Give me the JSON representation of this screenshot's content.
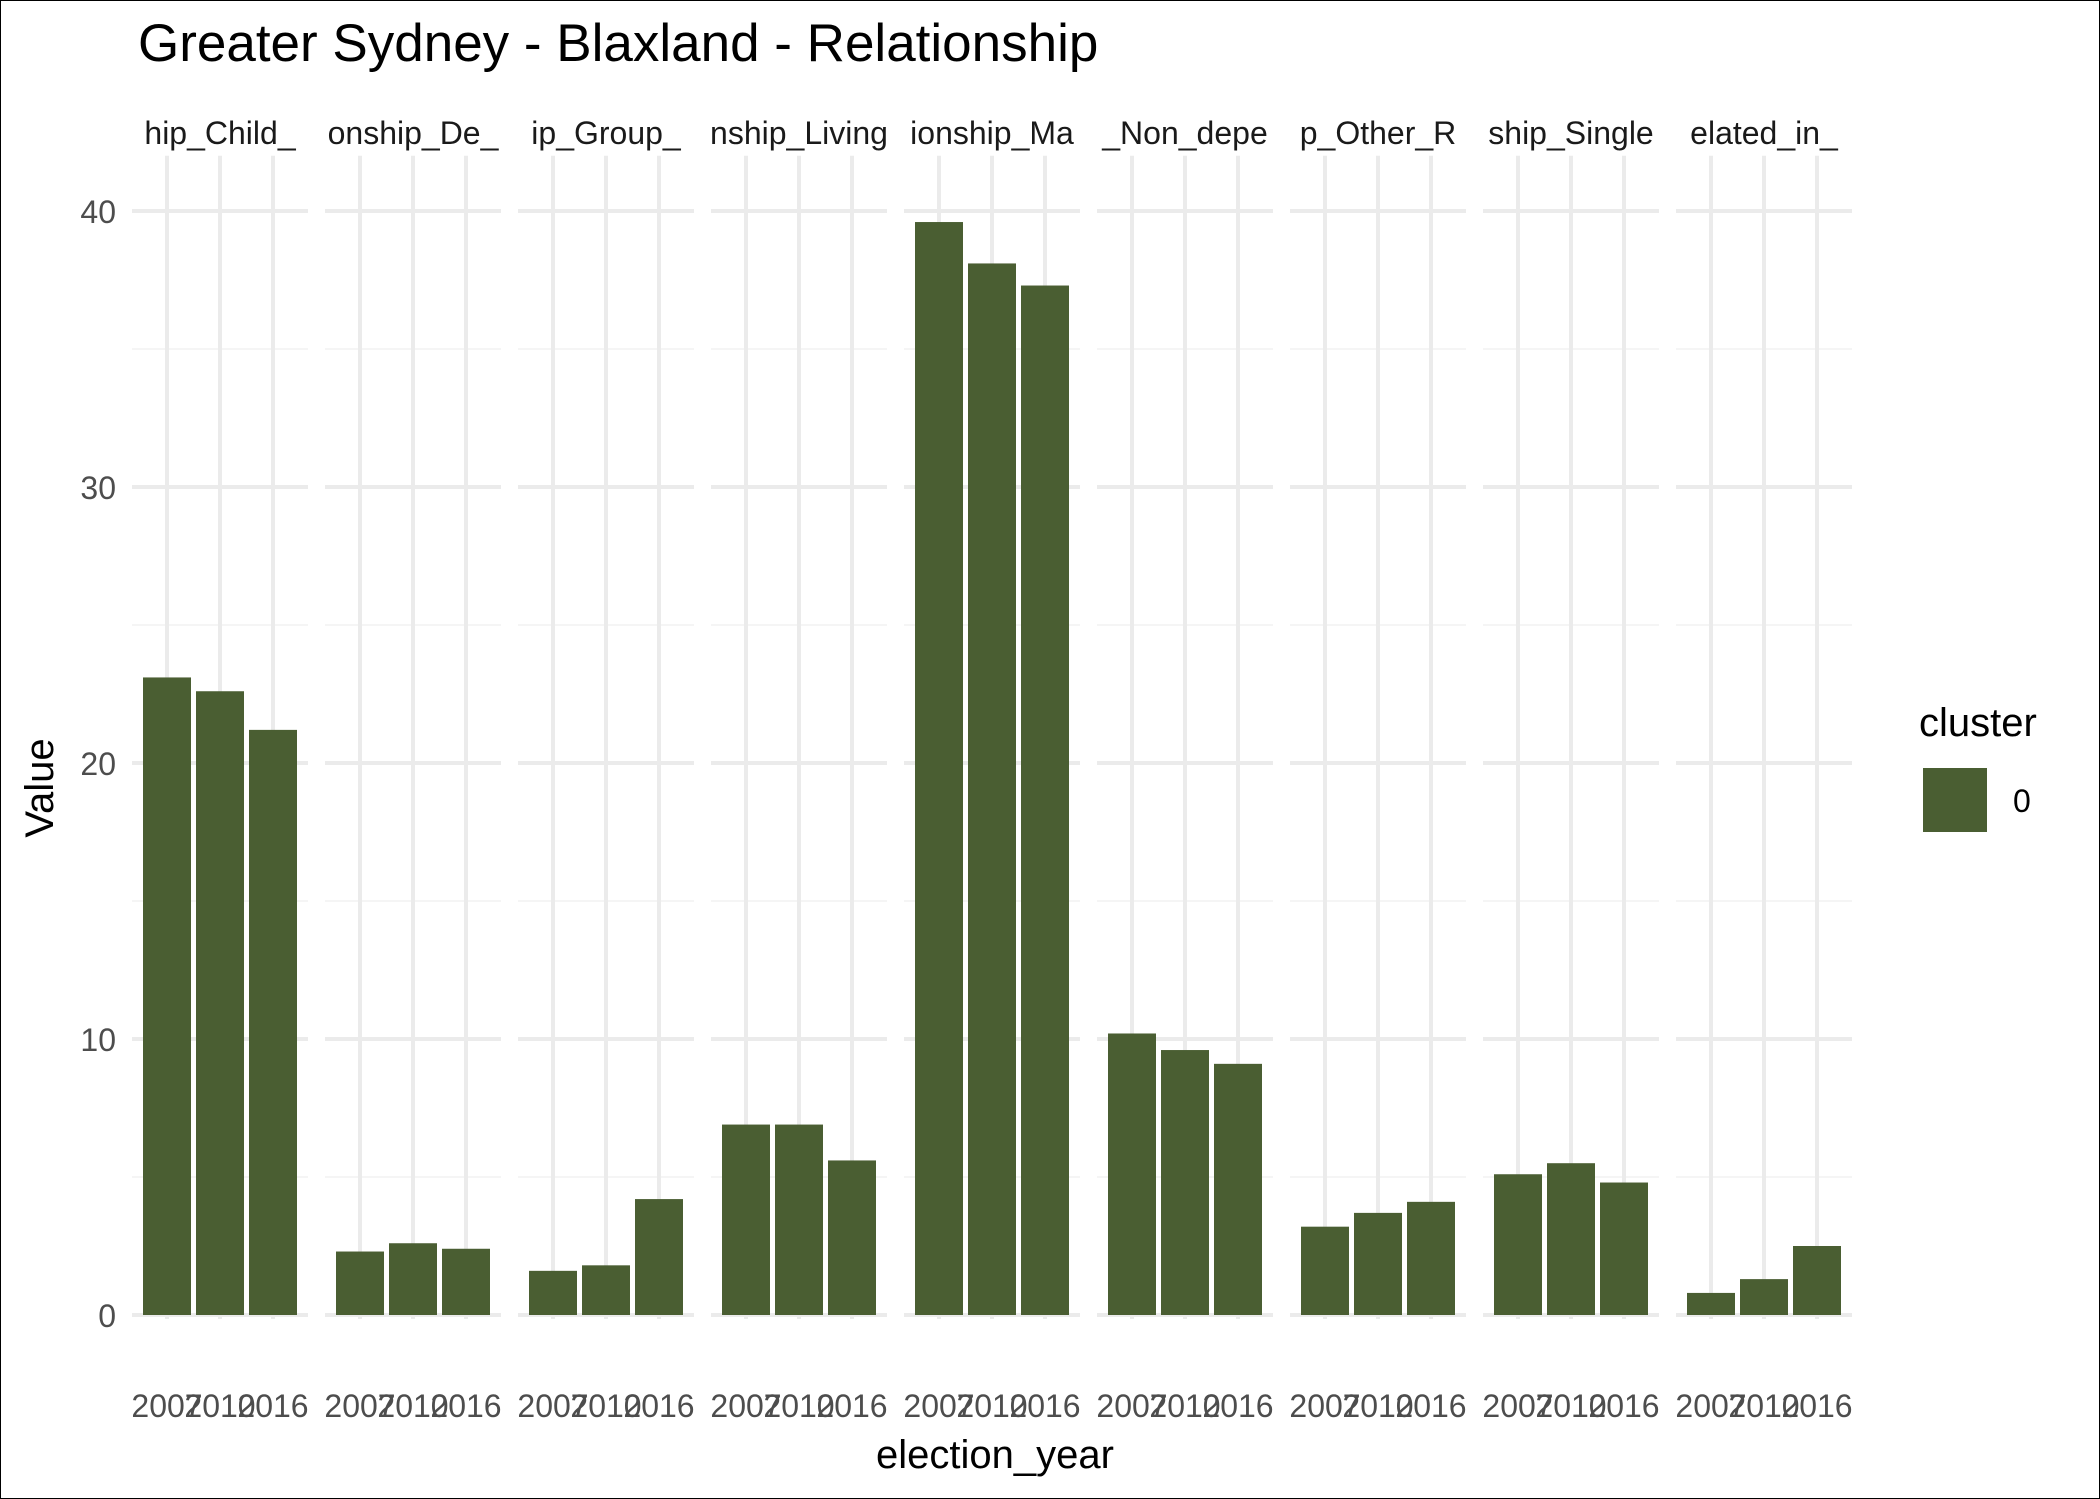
{
  "chart_data": {
    "type": "bar",
    "title": "Greater Sydney - Blaxland - Relationship",
    "xlabel": "election_year",
    "ylabel": "Value",
    "ylim": [
      0,
      42
    ],
    "yticks": [
      0,
      10,
      20,
      30,
      40
    ],
    "grid": true,
    "legend": {
      "title": "cluster",
      "position": "right",
      "entries": [
        {
          "label": "0",
          "color": "#4a5e32"
        }
      ]
    },
    "categories": [
      "2007",
      "2010",
      "2016"
    ],
    "facets": [
      {
        "label": "hip_Child_",
        "values": [
          23.1,
          22.6,
          21.2
        ]
      },
      {
        "label": "onship_De_",
        "values": [
          2.3,
          2.6,
          2.4
        ]
      },
      {
        "label": "ip_Group_",
        "values": [
          1.6,
          1.8,
          4.2
        ]
      },
      {
        "label": "nship_Living",
        "values": [
          6.9,
          6.9,
          5.6
        ]
      },
      {
        "label": "ionship_Ma",
        "values": [
          39.6,
          38.1,
          37.3
        ]
      },
      {
        "label": "_Non_depe",
        "values": [
          10.2,
          9.6,
          9.1
        ]
      },
      {
        "label": "p_Other_R",
        "values": [
          3.2,
          3.7,
          4.1
        ]
      },
      {
        "label": "ship_Single",
        "values": [
          5.1,
          5.5,
          4.8
        ]
      },
      {
        "label": "elated_in_",
        "values": [
          0.8,
          1.3,
          2.5
        ]
      }
    ]
  },
  "colors": {
    "bar": "#4a5e32",
    "grid_major": "#ebebeb",
    "grid_minor": "#f5f5f5",
    "axis_text": "#4d4d4d",
    "text": "#000000"
  }
}
